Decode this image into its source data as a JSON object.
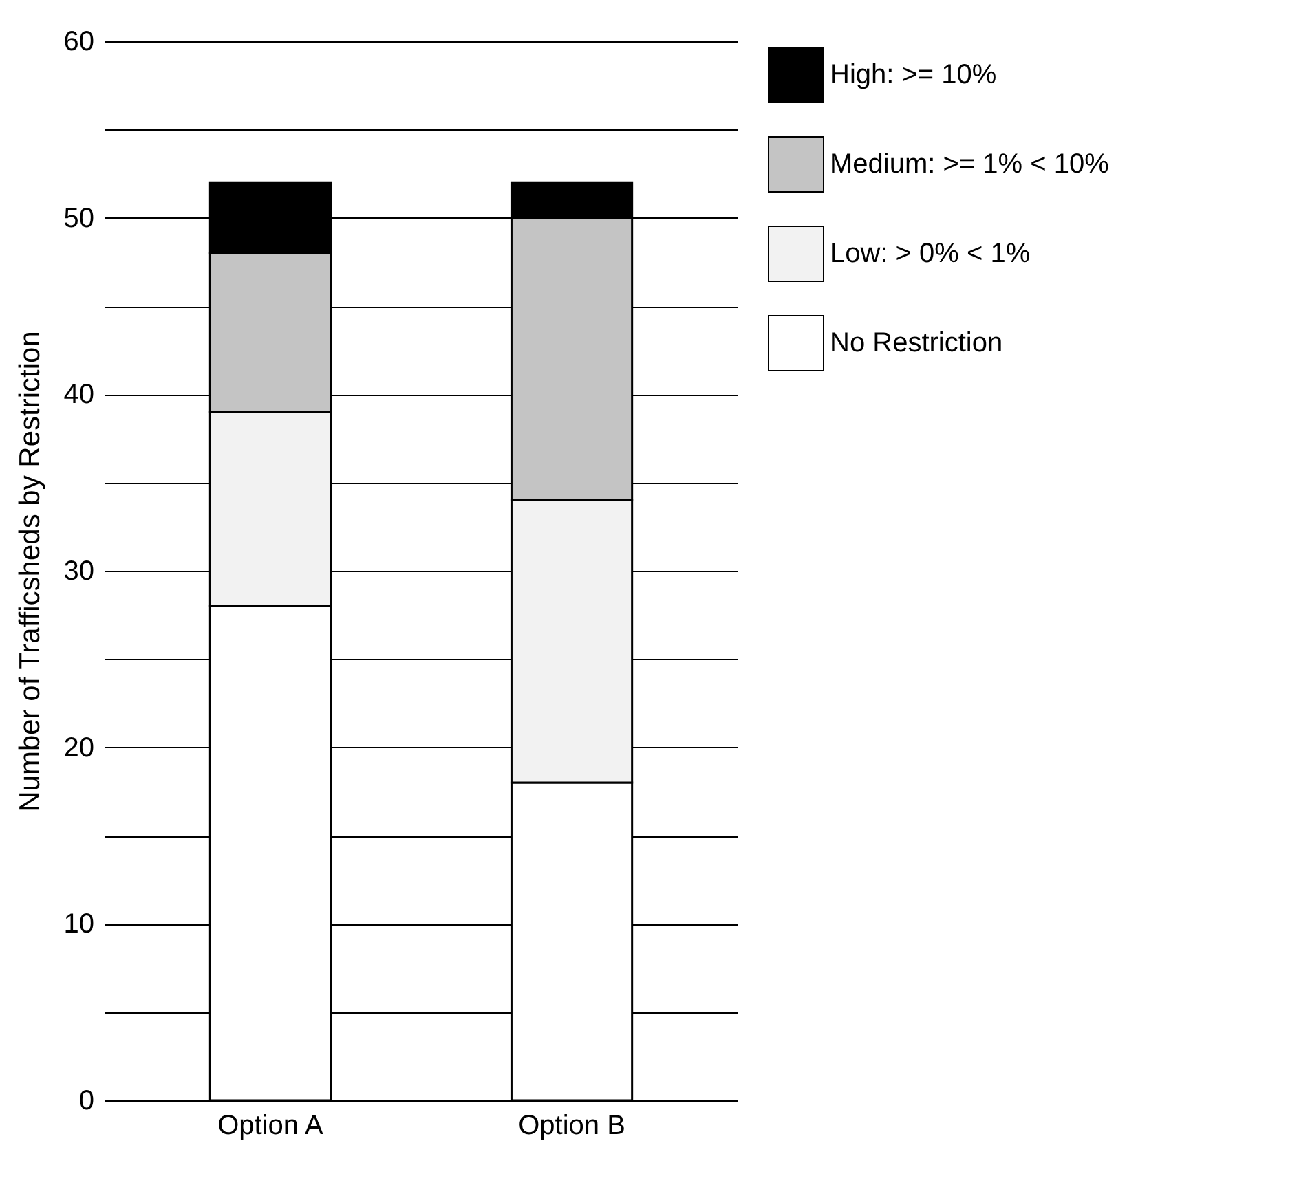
{
  "chart_data": {
    "type": "bar",
    "stacked": true,
    "ylabel": "Number of Trafficsheds by Restriction",
    "categories": [
      "Option A",
      "Option B"
    ],
    "series": [
      {
        "name": "No Restriction",
        "color": "#ffffff",
        "values": [
          28,
          18
        ]
      },
      {
        "name": "Low: > 0% < 1%",
        "color": "#f2f2f2",
        "values": [
          11,
          16
        ]
      },
      {
        "name": "Medium: >= 1% < 10%",
        "color": "#c4c4c4",
        "values": [
          9,
          16
        ]
      },
      {
        "name": "High: >= 10%",
        "color": "#000000",
        "values": [
          4,
          2
        ]
      }
    ],
    "ylim": [
      0,
      60
    ],
    "yticks": [
      0,
      {
        "value": 5,
        "label": null
      },
      10,
      {
        "value": 15,
        "label": null
      },
      20,
      {
        "value": 25,
        "label": null
      },
      30,
      {
        "value": 35,
        "label": null
      },
      40,
      {
        "value": 45,
        "label": null
      },
      50,
      {
        "value": 55,
        "label": null
      },
      60
    ],
    "grid": "y",
    "legend": "right"
  }
}
